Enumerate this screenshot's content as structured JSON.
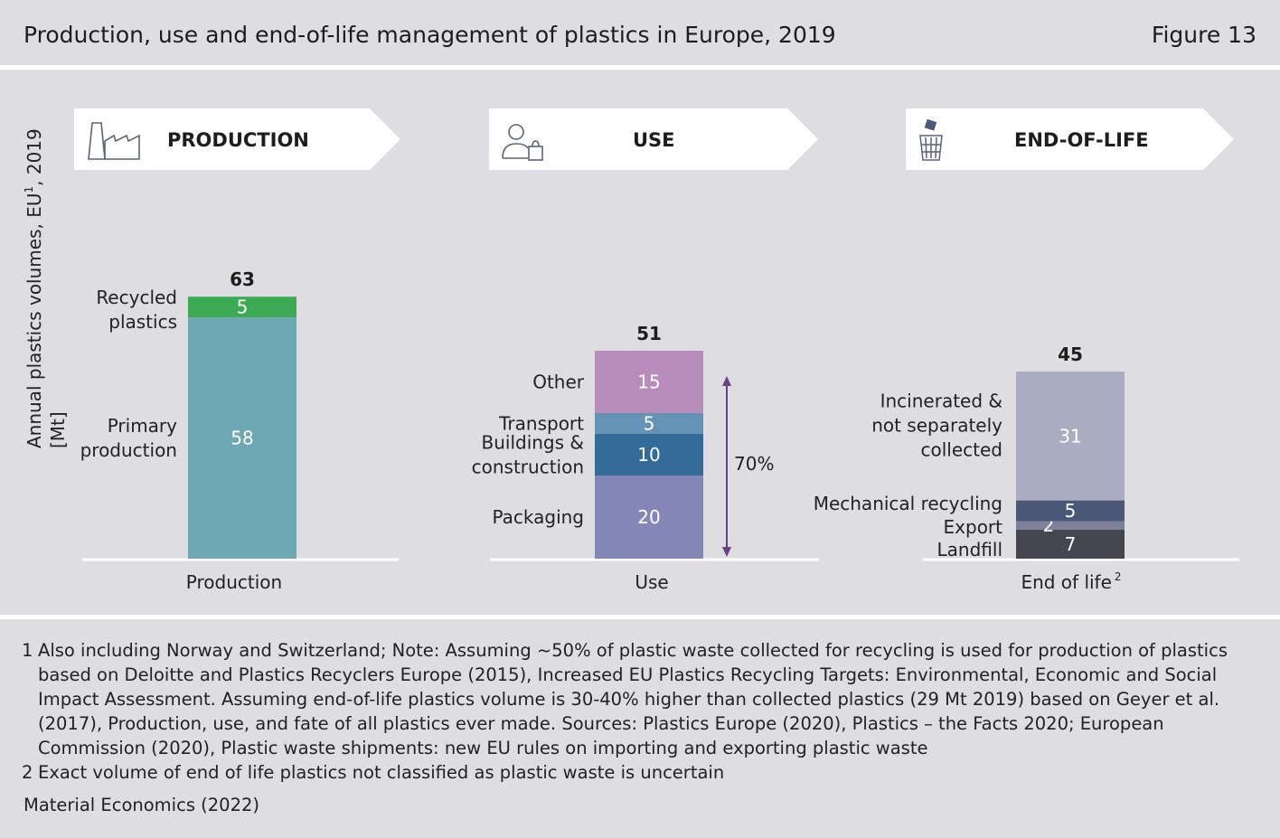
{
  "header": {
    "title": "Production, use and end-of-life management of plastics in Europe, 2019",
    "figure": "Figure 13"
  },
  "panels": [
    {
      "label": "PRODUCTION",
      "icon": "factory-icon"
    },
    {
      "label": "USE",
      "icon": "person-with-bag-icon"
    },
    {
      "label": "END-OF-LIFE",
      "icon": "trash-bin-icon"
    }
  ],
  "colors": {
    "primary_production": "#6ea8b3",
    "recycled_plastics": "#3dab54",
    "other": "#b88cbb",
    "transport": "#6593b5",
    "buildings": "#336b99",
    "packaging": "#8487b6",
    "incinerated": "#aaadc2",
    "mechanical_recycling": "#4a5777",
    "export": "#7d819a",
    "landfill": "#454650",
    "arrow": "#6b3e86"
  },
  "chart_data": {
    "type": "bar",
    "stacked": true,
    "ylabel": "Annual plastics volumes, EU¹, 2019 [Mt]",
    "ylim": [
      0,
      63
    ],
    "categories": [
      "Production",
      "Use",
      "End of life²"
    ],
    "totals": [
      63,
      51,
      45
    ],
    "series": [
      {
        "category": "Production",
        "segments": [
          {
            "name": "Primary production",
            "value": 58,
            "color_key": "primary_production"
          },
          {
            "name": "Recycled plastics",
            "value": 5,
            "color_key": "recycled_plastics"
          }
        ]
      },
      {
        "category": "Use",
        "segments": [
          {
            "name": "Packaging",
            "value": 20,
            "color_key": "packaging"
          },
          {
            "name": "Buildings & construction",
            "value": 10,
            "color_key": "buildings"
          },
          {
            "name": "Transport",
            "value": 5,
            "color_key": "transport"
          },
          {
            "name": "Other",
            "value": 15,
            "color_key": "other"
          }
        ]
      },
      {
        "category": "End of life²",
        "segments": [
          {
            "name": "Landfill",
            "value": 7,
            "color_key": "landfill"
          },
          {
            "name": "Export",
            "value": 2,
            "color_key": "export"
          },
          {
            "name": "Mechanical recycling",
            "value": 5,
            "color_key": "mechanical_recycling"
          },
          {
            "name": "Incinerated & not separately collected",
            "value": 31,
            "color_key": "incinerated"
          }
        ]
      }
    ],
    "annotations": [
      {
        "text": "70%"
      }
    ]
  },
  "footnotes": [
    {
      "num": "1",
      "text": "Also including Norway and Switzerland; Note: Assuming ~50% of plastic waste collected for recycling is used for production of plastics based on Deloitte and Plastics Recyclers Europe (2015), Increased EU Plastics Recycling Targets: Environmental, Economic and Social Impact Assessment. Assuming end-of-life plastics volume is 30-40% higher than collected plastics (29 Mt 2019) based on Geyer et al. (2017), Production, use, and fate of all plastics ever made. Sources: Plastics Europe (2020), Plastics – the Facts 2020; European Commission (2020), Plastic waste shipments: new EU rules on importing and exporting plastic waste"
    },
    {
      "num": "2",
      "text": "Exact volume of end of life plastics not classified as plastic waste is uncertain"
    }
  ],
  "source": "Material Economics (2022)"
}
